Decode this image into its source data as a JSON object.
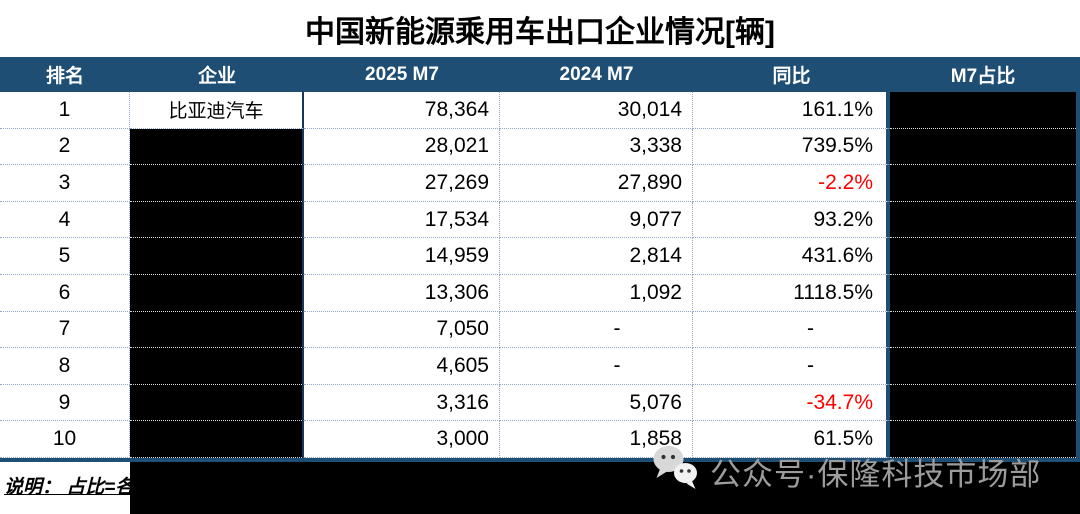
{
  "title": "中国新能源乘用车出口企业情况[辆]",
  "table": {
    "headers": [
      "排名",
      "企业",
      "2025 M7",
      "2024 M7",
      "同比",
      "M7占比"
    ],
    "rows": [
      {
        "rank": "1",
        "company": "比亚迪汽车",
        "company_redacted": false,
        "v2025": "78,364",
        "v2024": "30,014",
        "yoy": "161.1%",
        "yoy_negative": false,
        "share_redacted": true
      },
      {
        "rank": "2",
        "company": "",
        "company_redacted": true,
        "v2025": "28,021",
        "v2024": "3,338",
        "yoy": "739.5%",
        "yoy_negative": false,
        "share_redacted": true
      },
      {
        "rank": "3",
        "company": "",
        "company_redacted": true,
        "v2025": "27,269",
        "v2024": "27,890",
        "yoy": "-2.2%",
        "yoy_negative": true,
        "share_redacted": true
      },
      {
        "rank": "4",
        "company": "",
        "company_redacted": true,
        "v2025": "17,534",
        "v2024": "9,077",
        "yoy": "93.2%",
        "yoy_negative": false,
        "share_redacted": true
      },
      {
        "rank": "5",
        "company": "",
        "company_redacted": true,
        "v2025": "14,959",
        "v2024": "2,814",
        "yoy": "431.6%",
        "yoy_negative": false,
        "share_redacted": true
      },
      {
        "rank": "6",
        "company": "",
        "company_redacted": true,
        "v2025": "13,306",
        "v2024": "1,092",
        "yoy": "1118.5%",
        "yoy_negative": false,
        "share_redacted": true
      },
      {
        "rank": "7",
        "company": "",
        "company_redacted": true,
        "v2025": "7,050",
        "v2024": "-",
        "yoy": "-",
        "yoy_negative": false,
        "share_redacted": true
      },
      {
        "rank": "8",
        "company": "",
        "company_redacted": true,
        "v2025": "4,605",
        "v2024": "-",
        "yoy": "-",
        "yoy_negative": false,
        "share_redacted": true
      },
      {
        "rank": "9",
        "company": "",
        "company_redacted": true,
        "v2025": "3,316",
        "v2024": "5,076",
        "yoy": "-34.7%",
        "yoy_negative": true,
        "share_redacted": true
      },
      {
        "rank": "10",
        "company": "",
        "company_redacted": true,
        "v2025": "3,000",
        "v2024": "1,858",
        "yoy": "61.5%",
        "yoy_negative": false,
        "share_redacted": true
      }
    ]
  },
  "footer": {
    "note": "说明： 占比=各"
  },
  "watermark": {
    "text": "公众号·保隆科技市场部",
    "icon": "wechat-icon"
  },
  "colors": {
    "header_bg": "#1F4E75",
    "thick_border": "#1F4E75",
    "company_border": "#17375C",
    "dotted_border": "#8FA8C8",
    "negative_text": "#FF0000",
    "watermark_text": "#9C9C9C",
    "redaction": "#000000"
  },
  "chart_data": {
    "type": "table",
    "title": "中国新能源乘用车出口企业情况[辆]",
    "columns": [
      "排名",
      "企业",
      "2025 M7",
      "2024 M7",
      "同比",
      "M7占比"
    ],
    "rows": [
      [
        "1",
        "比亚迪汽车",
        "78,364",
        "30,014",
        "161.1%",
        null
      ],
      [
        "2",
        null,
        "28,021",
        "3,338",
        "739.5%",
        null
      ],
      [
        "3",
        null,
        "27,269",
        "27,890",
        "-2.2%",
        null
      ],
      [
        "4",
        null,
        "17,534",
        "9,077",
        "93.2%",
        null
      ],
      [
        "5",
        null,
        "14,959",
        "2,814",
        "431.6%",
        null
      ],
      [
        "6",
        null,
        "13,306",
        "1,092",
        "1118.5%",
        null
      ],
      [
        "7",
        null,
        "7,050",
        "-",
        "-",
        null
      ],
      [
        "8",
        null,
        "4,605",
        "-",
        "-",
        null
      ],
      [
        "9",
        null,
        "3,316",
        "5,076",
        "-34.7%",
        null
      ],
      [
        "10",
        null,
        "3,000",
        "1,858",
        "61.5%",
        null
      ]
    ],
    "notes": "企业 column rows 2-10, entire M7占比 column, and footer region are blacked out (redacted); negative 同比 values shown in red"
  }
}
